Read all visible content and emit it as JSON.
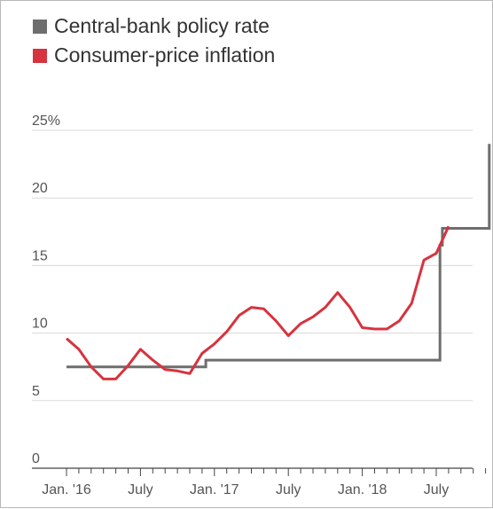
{
  "chart_data": {
    "type": "line",
    "title": "",
    "xlabel": "",
    "ylabel": "",
    "ylim": [
      0,
      25
    ],
    "yticks": [
      0,
      5,
      10,
      15,
      20,
      25
    ],
    "ytick_labels": [
      "0",
      "5",
      "10",
      "15",
      "20",
      "25%"
    ],
    "xlim": [
      0,
      34.5
    ],
    "xtick_labels": [
      {
        "label": "Jan. '16",
        "month_index": 0
      },
      {
        "label": "July",
        "month_index": 6
      },
      {
        "label": "Jan. '17",
        "month_index": 12
      },
      {
        "label": "July",
        "month_index": 18
      },
      {
        "label": "Jan. '18",
        "month_index": 24
      },
      {
        "label": "July",
        "month_index": 30
      }
    ],
    "grid": true,
    "legend_position": "top-left",
    "series": [
      {
        "name": "Central-bank policy rate",
        "color": "#6e6e6e",
        "step": true,
        "points": [
          {
            "x": 0,
            "y": 7.5
          },
          {
            "x": 11.3,
            "y": 7.5
          },
          {
            "x": 11.3,
            "y": 8.0
          },
          {
            "x": 30.3,
            "y": 8.0
          },
          {
            "x": 30.3,
            "y": 16.5
          },
          {
            "x": 30.5,
            "y": 16.5
          },
          {
            "x": 30.5,
            "y": 17.75
          },
          {
            "x": 34.3,
            "y": 17.75
          },
          {
            "x": 34.3,
            "y": 24.0
          }
        ]
      },
      {
        "name": "Consumer-price inflation",
        "color": "#d6333f",
        "step": false,
        "points": [
          {
            "x": 0,
            "y": 9.6
          },
          {
            "x": 1,
            "y": 8.8
          },
          {
            "x": 2,
            "y": 7.5
          },
          {
            "x": 3,
            "y": 6.6
          },
          {
            "x": 4,
            "y": 6.6
          },
          {
            "x": 5,
            "y": 7.6
          },
          {
            "x": 6,
            "y": 8.8
          },
          {
            "x": 7,
            "y": 8.0
          },
          {
            "x": 8,
            "y": 7.3
          },
          {
            "x": 9,
            "y": 7.2
          },
          {
            "x": 10,
            "y": 7.0
          },
          {
            "x": 11,
            "y": 8.5
          },
          {
            "x": 12,
            "y": 9.2
          },
          {
            "x": 13,
            "y": 10.1
          },
          {
            "x": 14,
            "y": 11.3
          },
          {
            "x": 15,
            "y": 11.9
          },
          {
            "x": 16,
            "y": 11.8
          },
          {
            "x": 17,
            "y": 10.9
          },
          {
            "x": 18,
            "y": 9.8
          },
          {
            "x": 19,
            "y": 10.7
          },
          {
            "x": 20,
            "y": 11.2
          },
          {
            "x": 21,
            "y": 11.9
          },
          {
            "x": 22,
            "y": 13.0
          },
          {
            "x": 23,
            "y": 11.9
          },
          {
            "x": 24,
            "y": 10.4
          },
          {
            "x": 25,
            "y": 10.3
          },
          {
            "x": 26,
            "y": 10.3
          },
          {
            "x": 27,
            "y": 10.9
          },
          {
            "x": 28,
            "y": 12.2
          },
          {
            "x": 29,
            "y": 15.4
          },
          {
            "x": 30,
            "y": 15.9
          },
          {
            "x": 31,
            "y": 17.9
          }
        ]
      }
    ]
  }
}
